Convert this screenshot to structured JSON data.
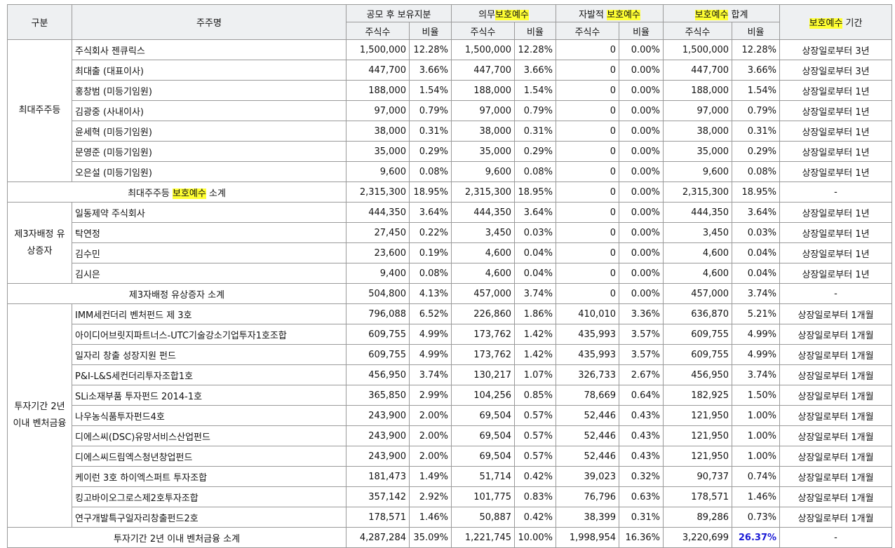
{
  "header": {
    "category": "구분",
    "holder": "주주명",
    "post_ipo": "공모 후 보유지분",
    "mandatory_prefix": "의무",
    "mandatory_hl": "보호예수",
    "voluntary_prefix": "자발적 ",
    "voluntary_hl": "보호예수",
    "total_hl": "보호예수",
    "total_suffix": " 합계",
    "period_hl": "보호예수",
    "period_suffix": " 기간",
    "shares": "주식수",
    "ratio": "비율"
  },
  "groups": [
    {
      "label": "최대주주등",
      "rows": [
        {
          "name": "주식회사 젠큐릭스",
          "s1": "1,500,000",
          "r1": "12.28%",
          "s2": "1,500,000",
          "r2": "12.28%",
          "s3": "0",
          "r3": "0.00%",
          "s4": "1,500,000",
          "r4": "12.28%",
          "period": "상장일로부터 3년"
        },
        {
          "name": "최대출 (대표이사)",
          "s1": "447,700",
          "r1": "3.66%",
          "s2": "447,700",
          "r2": "3.66%",
          "s3": "0",
          "r3": "0.00%",
          "s4": "447,700",
          "r4": "3.66%",
          "period": "상장일로부터 3년"
        },
        {
          "name": "홍창범 (미등기임원)",
          "s1": "188,000",
          "r1": "1.54%",
          "s2": "188,000",
          "r2": "1.54%",
          "s3": "0",
          "r3": "0.00%",
          "s4": "188,000",
          "r4": "1.54%",
          "period": "상장일로부터 1년"
        },
        {
          "name": "김광중 (사내이사)",
          "s1": "97,000",
          "r1": "0.79%",
          "s2": "97,000",
          "r2": "0.79%",
          "s3": "0",
          "r3": "0.00%",
          "s4": "97,000",
          "r4": "0.79%",
          "period": "상장일로부터 1년"
        },
        {
          "name": "윤세혁 (미등기임원)",
          "s1": "38,000",
          "r1": "0.31%",
          "s2": "38,000",
          "r2": "0.31%",
          "s3": "0",
          "r3": "0.00%",
          "s4": "38,000",
          "r4": "0.31%",
          "period": "상장일로부터 1년"
        },
        {
          "name": "문영준 (미등기임원)",
          "s1": "35,000",
          "r1": "0.29%",
          "s2": "35,000",
          "r2": "0.29%",
          "s3": "0",
          "r3": "0.00%",
          "s4": "35,000",
          "r4": "0.29%",
          "period": "상장일로부터 1년"
        },
        {
          "name": "오은설 (미등기임원)",
          "s1": "9,600",
          "r1": "0.08%",
          "s2": "9,600",
          "r2": "0.08%",
          "s3": "0",
          "r3": "0.00%",
          "s4": "9,600",
          "r4": "0.08%",
          "period": "상장일로부터 1년"
        }
      ],
      "subtotal": {
        "label_pre": "최대주주등 ",
        "label_hl": "보호예수",
        "label_post": " 소계",
        "s1": "2,315,300",
        "r1": "18.95%",
        "s2": "2,315,300",
        "r2": "18.95%",
        "s3": "0",
        "r3": "0.00%",
        "s4": "2,315,300",
        "r4": "18.95%",
        "period": "-"
      }
    },
    {
      "label": "제3자배정 유상증자",
      "rows": [
        {
          "name": "일동제약 주식회사",
          "s1": "444,350",
          "r1": "3.64%",
          "s2": "444,350",
          "r2": "3.64%",
          "s3": "0",
          "r3": "0.00%",
          "s4": "444,350",
          "r4": "3.64%",
          "period": "상장일로부터 1년"
        },
        {
          "name": "탁연정",
          "s1": "27,450",
          "r1": "0.22%",
          "s2": "3,450",
          "r2": "0.03%",
          "s3": "0",
          "r3": "0.00%",
          "s4": "3,450",
          "r4": "0.03%",
          "period": "상장일로부터 1년"
        },
        {
          "name": "김수민",
          "s1": "23,600",
          "r1": "0.19%",
          "s2": "4,600",
          "r2": "0.04%",
          "s3": "0",
          "r3": "0.00%",
          "s4": "4,600",
          "r4": "0.04%",
          "period": "상장일로부터 1년"
        },
        {
          "name": "김시은",
          "s1": "9,400",
          "r1": "0.08%",
          "s2": "4,600",
          "r2": "0.04%",
          "s3": "0",
          "r3": "0.00%",
          "s4": "4,600",
          "r4": "0.04%",
          "period": "상장일로부터 1년"
        }
      ],
      "subtotal": {
        "label_pre": "제3자배정 유상증자 소계",
        "label_hl": "",
        "label_post": "",
        "s1": "504,800",
        "r1": "4.13%",
        "s2": "457,000",
        "r2": "3.74%",
        "s3": "0",
        "r3": "0.00%",
        "s4": "457,000",
        "r4": "3.74%",
        "period": "-"
      }
    },
    {
      "label": "투자기간 2년 이내 벤처금융",
      "rows": [
        {
          "name": "IMM세컨더리 벤처펀드 제 3호",
          "s1": "796,088",
          "r1": "6.52%",
          "s2": "226,860",
          "r2": "1.86%",
          "s3": "410,010",
          "r3": "3.36%",
          "s4": "636,870",
          "r4": "5.21%",
          "period": "상장일로부터 1개월"
        },
        {
          "name": "아이디어브릿지파트너스-UTC기술강소기업투자1호조합",
          "s1": "609,755",
          "r1": "4.99%",
          "s2": "173,762",
          "r2": "1.42%",
          "s3": "435,993",
          "r3": "3.57%",
          "s4": "609,755",
          "r4": "4.99%",
          "period": "상장일로부터 1개월"
        },
        {
          "name": "일자리 창출 성장지원 펀드",
          "s1": "609,755",
          "r1": "4.99%",
          "s2": "173,762",
          "r2": "1.42%",
          "s3": "435,993",
          "r3": "3.57%",
          "s4": "609,755",
          "r4": "4.99%",
          "period": "상장일로부터 1개월"
        },
        {
          "name": "P&I-L&S세컨더리투자조합1호",
          "s1": "456,950",
          "r1": "3.74%",
          "s2": "130,217",
          "r2": "1.07%",
          "s3": "326,733",
          "r3": "2.67%",
          "s4": "456,950",
          "r4": "3.74%",
          "period": "상장일로부터 1개월"
        },
        {
          "name": "SLi소재부품 투자펀드 2014-1호",
          "s1": "365,850",
          "r1": "2.99%",
          "s2": "104,256",
          "r2": "0.85%",
          "s3": "78,669",
          "r3": "0.64%",
          "s4": "182,925",
          "r4": "1.50%",
          "period": "상장일로부터 1개월"
        },
        {
          "name": "나우농식품투자펀드4호",
          "s1": "243,900",
          "r1": "2.00%",
          "s2": "69,504",
          "r2": "0.57%",
          "s3": "52,446",
          "r3": "0.43%",
          "s4": "121,950",
          "r4": "1.00%",
          "period": "상장일로부터 1개월"
        },
        {
          "name": "디에스씨(DSC)유망서비스산업펀드",
          "s1": "243,900",
          "r1": "2.00%",
          "s2": "69,504",
          "r2": "0.57%",
          "s3": "52,446",
          "r3": "0.43%",
          "s4": "121,950",
          "r4": "1.00%",
          "period": "상장일로부터 1개월"
        },
        {
          "name": "디에스씨드림엑스청년창업펀드",
          "s1": "243,900",
          "r1": "2.00%",
          "s2": "69,504",
          "r2": "0.57%",
          "s3": "52,446",
          "r3": "0.43%",
          "s4": "121,950",
          "r4": "1.00%",
          "period": "상장일로부터 1개월"
        },
        {
          "name": "케이런 3호 하이엑스퍼트 투자조합",
          "s1": "181,473",
          "r1": "1.49%",
          "s2": "51,714",
          "r2": "0.42%",
          "s3": "39,023",
          "r3": "0.32%",
          "s4": "90,737",
          "r4": "0.74%",
          "period": "상장일로부터 1개월"
        },
        {
          "name": "킹고바이오그로스제2호투자조합",
          "s1": "357,142",
          "r1": "2.92%",
          "s2": "101,775",
          "r2": "0.83%",
          "s3": "76,796",
          "r3": "0.63%",
          "s4": "178,571",
          "r4": "1.46%",
          "period": "상장일로부터 1개월"
        },
        {
          "name": "연구개발특구일자리창출펀드2호",
          "s1": "178,571",
          "r1": "1.46%",
          "s2": "50,887",
          "r2": "0.42%",
          "s3": "38,399",
          "r3": "0.31%",
          "s4": "89,286",
          "r4": "0.73%",
          "period": "상장일로부터 1개월"
        }
      ],
      "subtotal": {
        "label_pre": "투자기간 2년 이내 벤처금융 소계",
        "label_hl": "",
        "label_post": "",
        "s1": "4,287,284",
        "r1": "35.09%",
        "s2": "1,221,745",
        "r2": "10.00%",
        "s3": "1,998,954",
        "r3": "16.36%",
        "s4": "3,220,699",
        "r4": "26.37%",
        "r4_highlight": true,
        "period": "-"
      }
    }
  ]
}
